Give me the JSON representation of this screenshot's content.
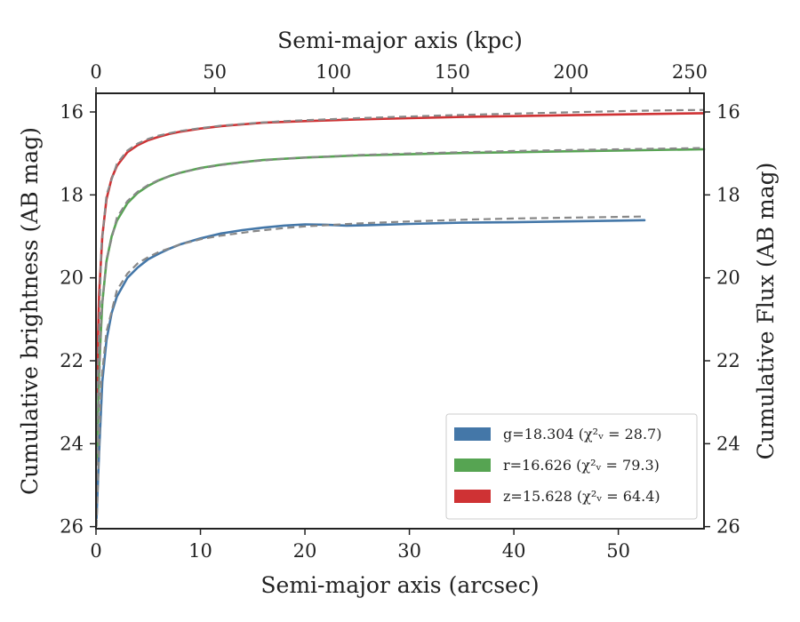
{
  "chart_data": {
    "type": "line",
    "xlabel": "Semi-major axis (arcsec)",
    "ylabel": "Cumulative brightness (AB mag)",
    "x2label": "Semi-major axis (kpc)",
    "y2label": "Cumulative Flux (AB mag)",
    "xlim": [
      0,
      58.2
    ],
    "ylim": [
      26.05,
      15.55
    ],
    "x2lim": [
      0,
      256
    ],
    "xticks": [
      0,
      10,
      20,
      30,
      40,
      50
    ],
    "yticks": [
      16,
      18,
      20,
      22,
      24,
      26
    ],
    "x2ticks": [
      0,
      50,
      100,
      150,
      200,
      250
    ],
    "y2ticks": [
      16,
      18,
      20,
      22,
      24,
      26
    ],
    "series": [
      {
        "name": "g",
        "legend": "g=18.304 (χ²ᵥ = 28.7)",
        "color": "#4477a8",
        "x": [
          0.05,
          0.3,
          0.6,
          1.0,
          1.5,
          2,
          3,
          4,
          5,
          6,
          7,
          8,
          10,
          12,
          14,
          16,
          18,
          20,
          22,
          24,
          26,
          30,
          35,
          40,
          45,
          50,
          52.5
        ],
        "y": [
          25.8,
          24.2,
          22.5,
          21.5,
          20.85,
          20.45,
          20.0,
          19.75,
          19.55,
          19.42,
          19.3,
          19.2,
          19.05,
          18.93,
          18.85,
          18.79,
          18.74,
          18.71,
          18.72,
          18.74,
          18.73,
          18.7,
          18.67,
          18.66,
          18.64,
          18.62,
          18.61
        ]
      },
      {
        "name": "r",
        "legend": "r=16.626 (χ²ᵥ = 79.3)",
        "color": "#56a452",
        "x": [
          0.05,
          0.3,
          0.6,
          1.0,
          1.5,
          2,
          3,
          4,
          5,
          6,
          7,
          8,
          10,
          12,
          14,
          16,
          18,
          20,
          25,
          30,
          35,
          40,
          45,
          50,
          55,
          58.2
        ],
        "y": [
          24.5,
          22.2,
          20.6,
          19.6,
          19.0,
          18.62,
          18.2,
          17.95,
          17.78,
          17.65,
          17.55,
          17.47,
          17.35,
          17.27,
          17.21,
          17.16,
          17.13,
          17.1,
          17.05,
          17.02,
          16.99,
          16.97,
          16.95,
          16.93,
          16.91,
          16.9
        ]
      },
      {
        "name": "z",
        "legend": "z=15.628 (χ²ᵥ = 64.4)",
        "color": "#cf3234",
        "x": [
          0.05,
          0.3,
          0.6,
          1.0,
          1.5,
          2,
          3,
          4,
          5,
          6,
          7,
          8,
          10,
          12,
          14,
          16,
          18,
          20,
          25,
          30,
          35,
          40,
          45,
          50,
          55,
          58.2
        ],
        "y": [
          22.8,
          20.4,
          19.0,
          18.1,
          17.6,
          17.3,
          16.97,
          16.8,
          16.68,
          16.6,
          16.53,
          16.48,
          16.4,
          16.34,
          16.3,
          16.26,
          16.24,
          16.22,
          16.18,
          16.15,
          16.12,
          16.1,
          16.08,
          16.06,
          16.04,
          16.03
        ]
      }
    ],
    "fits": [
      {
        "color": "#888888",
        "x": [
          0.05,
          0.5,
          1,
          2,
          3,
          4,
          5,
          6,
          8,
          10,
          12,
          15,
          18,
          20,
          25,
          30,
          35,
          40,
          45,
          50,
          52.5
        ],
        "y": [
          26.0,
          22.5,
          21.3,
          20.3,
          19.9,
          19.65,
          19.5,
          19.38,
          19.2,
          19.07,
          18.98,
          18.88,
          18.8,
          18.76,
          18.69,
          18.64,
          18.6,
          18.57,
          18.55,
          18.53,
          18.52
        ]
      },
      {
        "color": "#888888",
        "x": [
          0.05,
          0.5,
          1,
          2,
          3,
          4,
          5,
          6,
          8,
          10,
          12,
          15,
          18,
          20,
          25,
          30,
          35,
          40,
          45,
          50,
          55,
          58.2
        ],
        "y": [
          24.8,
          20.9,
          19.55,
          18.55,
          18.15,
          17.92,
          17.76,
          17.64,
          17.47,
          17.36,
          17.28,
          17.19,
          17.13,
          17.1,
          17.04,
          17.0,
          16.97,
          16.94,
          16.92,
          16.9,
          16.88,
          16.87
        ]
      },
      {
        "color": "#888888",
        "x": [
          0.05,
          0.5,
          1,
          2,
          3,
          4,
          5,
          6,
          8,
          10,
          12,
          15,
          18,
          20,
          25,
          30,
          35,
          40,
          45,
          50,
          55,
          58.2
        ],
        "y": [
          23.5,
          19.3,
          18.0,
          17.25,
          16.93,
          16.76,
          16.65,
          16.57,
          16.46,
          16.39,
          16.33,
          16.27,
          16.22,
          16.2,
          16.15,
          16.11,
          16.07,
          16.04,
          16.01,
          15.98,
          15.96,
          15.95
        ]
      }
    ],
    "legend_position": "lower-right",
    "grid": false
  }
}
